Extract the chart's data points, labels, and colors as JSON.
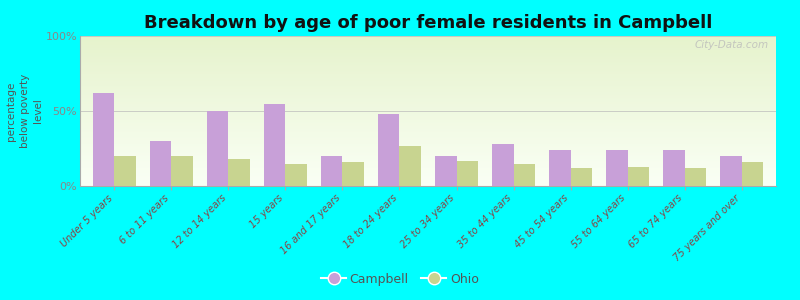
{
  "title": "Breakdown by age of poor female residents in Campbell",
  "ylabel": "percentage\nbelow poverty\nlevel",
  "categories": [
    "Under 5 years",
    "6 to 11 years",
    "12 to 14 years",
    "15 years",
    "16 and 17 years",
    "18 to 24 years",
    "25 to 34 years",
    "35 to 44 years",
    "45 to 54 years",
    "55 to 64 years",
    "65 to 74 years",
    "75 years and over"
  ],
  "campbell_values": [
    62,
    30,
    50,
    55,
    20,
    48,
    20,
    28,
    24,
    24,
    24,
    20
  ],
  "ohio_values": [
    20,
    20,
    18,
    15,
    16,
    27,
    17,
    15,
    12,
    13,
    12,
    16
  ],
  "campbell_color": "#c8a0d8",
  "ohio_color": "#c8d490",
  "background_color": "#00ffff",
  "yticks": [
    0,
    50,
    100
  ],
  "ytick_labels": [
    "0%",
    "50%",
    "100%"
  ],
  "ylim": [
    0,
    100
  ],
  "bar_width": 0.38,
  "title_fontsize": 13,
  "legend_labels": [
    "Campbell",
    "Ohio"
  ],
  "watermark": "City-Data.com",
  "label_color": "#884444",
  "ylabel_color": "#555555",
  "tick_color": "#888888"
}
